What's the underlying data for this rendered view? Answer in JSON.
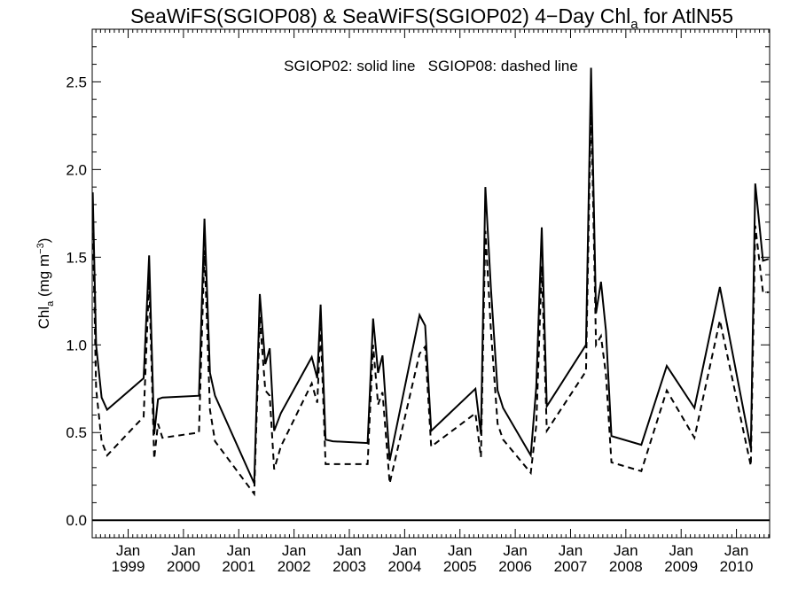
{
  "chart_data": {
    "type": "line",
    "title": {
      "pre": "SeaWiFS(SGIOP08) & SeaWiFS(SGIOP02) 4−Day Chl",
      "sub": "a",
      "post": " for AtlN55"
    },
    "ylabel": {
      "main": "Chl",
      "sub": "a",
      "unit": " (mg m",
      "sup": "−3",
      "close": ")"
    },
    "annotation": "SGIOP02: solid line   SGIOP08: dashed line",
    "xlim": [
      1998.35,
      2010.6
    ],
    "ylim": [
      -0.1,
      2.8
    ],
    "yticks": [
      0.0,
      0.5,
      1.0,
      1.5,
      2.0,
      2.5
    ],
    "ytick_labels": [
      "0.0",
      "0.5",
      "1.0",
      "1.5",
      "2.0",
      "2.5"
    ],
    "xticks": [
      {
        "x": 1999.0,
        "month": "Jan",
        "year": "1999"
      },
      {
        "x": 2000.0,
        "month": "Jan",
        "year": "2000"
      },
      {
        "x": 2001.0,
        "month": "Jan",
        "year": "2001"
      },
      {
        "x": 2002.0,
        "month": "Jan",
        "year": "2002"
      },
      {
        "x": 2003.0,
        "month": "Jan",
        "year": "2003"
      },
      {
        "x": 2004.0,
        "month": "Jan",
        "year": "2004"
      },
      {
        "x": 2005.0,
        "month": "Jan",
        "year": "2005"
      },
      {
        "x": 2006.0,
        "month": "Jan",
        "year": "2006"
      },
      {
        "x": 2007.0,
        "month": "Jan",
        "year": "2007"
      },
      {
        "x": 2008.0,
        "month": "Jan",
        "year": "2008"
      },
      {
        "x": 2009.0,
        "month": "Jan",
        "year": "2009"
      },
      {
        "x": 2010.0,
        "month": "Jan",
        "year": "2010"
      }
    ],
    "series": [
      {
        "style": "solid",
        "x": [
          1998.36,
          1998.42,
          1998.52,
          1998.62,
          1999.28,
          1999.38,
          1999.47,
          1999.54,
          1999.62,
          2000.28,
          2000.38,
          2000.48,
          2000.57,
          2001.28,
          2001.38,
          2001.48,
          2001.56,
          2001.64,
          2001.76,
          2002.32,
          2002.42,
          2002.48,
          2002.57,
          2002.7,
          2003.33,
          2003.43,
          2003.52,
          2003.6,
          2003.73,
          2004.27,
          2004.37,
          2004.48,
          2005.28,
          2005.38,
          2005.46,
          2005.56,
          2005.68,
          2005.78,
          2006.28,
          2006.38,
          2006.48,
          2006.57,
          2007.28,
          2007.37,
          2007.46,
          2007.55,
          2007.64,
          2007.74,
          2008.28,
          2008.74,
          2009.24,
          2009.7,
          2010.26,
          2010.34,
          2010.48,
          2010.58
        ],
        "y": [
          1.87,
          1.0,
          0.7,
          0.63,
          0.81,
          1.51,
          0.49,
          0.69,
          0.7,
          0.71,
          1.72,
          0.84,
          0.71,
          0.21,
          1.29,
          0.89,
          0.98,
          0.51,
          0.61,
          0.93,
          0.81,
          1.23,
          0.46,
          0.45,
          0.44,
          1.15,
          0.84,
          0.94,
          0.34,
          1.17,
          1.11,
          0.51,
          0.75,
          0.49,
          1.9,
          1.32,
          0.74,
          0.64,
          0.37,
          0.76,
          1.67,
          0.65,
          1.0,
          2.58,
          1.18,
          1.36,
          1.08,
          0.48,
          0.43,
          0.88,
          0.64,
          1.33,
          0.41,
          1.92,
          1.48,
          1.49
        ]
      },
      {
        "style": "dashed",
        "x": [
          1998.36,
          1998.42,
          1998.52,
          1998.62,
          1999.28,
          1999.38,
          1999.47,
          1999.54,
          1999.62,
          2000.28,
          2000.38,
          2000.48,
          2000.57,
          2001.28,
          2001.38,
          2001.48,
          2001.56,
          2001.64,
          2001.76,
          2002.32,
          2002.42,
          2002.48,
          2002.57,
          2002.7,
          2003.33,
          2003.43,
          2003.52,
          2003.6,
          2003.73,
          2004.27,
          2004.37,
          2004.48,
          2005.28,
          2005.38,
          2005.46,
          2005.56,
          2005.68,
          2005.78,
          2006.28,
          2006.38,
          2006.48,
          2006.57,
          2007.28,
          2007.37,
          2007.46,
          2007.55,
          2007.64,
          2007.74,
          2008.28,
          2008.74,
          2009.24,
          2009.7,
          2010.26,
          2010.34,
          2010.48,
          2010.58
        ],
        "y": [
          1.7,
          0.75,
          0.45,
          0.37,
          0.59,
          1.37,
          0.35,
          0.55,
          0.47,
          0.5,
          1.54,
          0.63,
          0.45,
          0.15,
          1.16,
          0.74,
          0.71,
          0.29,
          0.42,
          0.78,
          0.67,
          1.1,
          0.32,
          0.32,
          0.32,
          1.0,
          0.66,
          0.73,
          0.21,
          0.95,
          0.99,
          0.42,
          0.61,
          0.36,
          1.65,
          1.08,
          0.55,
          0.46,
          0.27,
          0.54,
          1.45,
          0.51,
          0.85,
          2.4,
          1.0,
          1.05,
          0.83,
          0.33,
          0.28,
          0.74,
          0.47,
          1.14,
          0.31,
          1.68,
          1.3,
          1.3
        ]
      }
    ],
    "zero_line": true
  }
}
